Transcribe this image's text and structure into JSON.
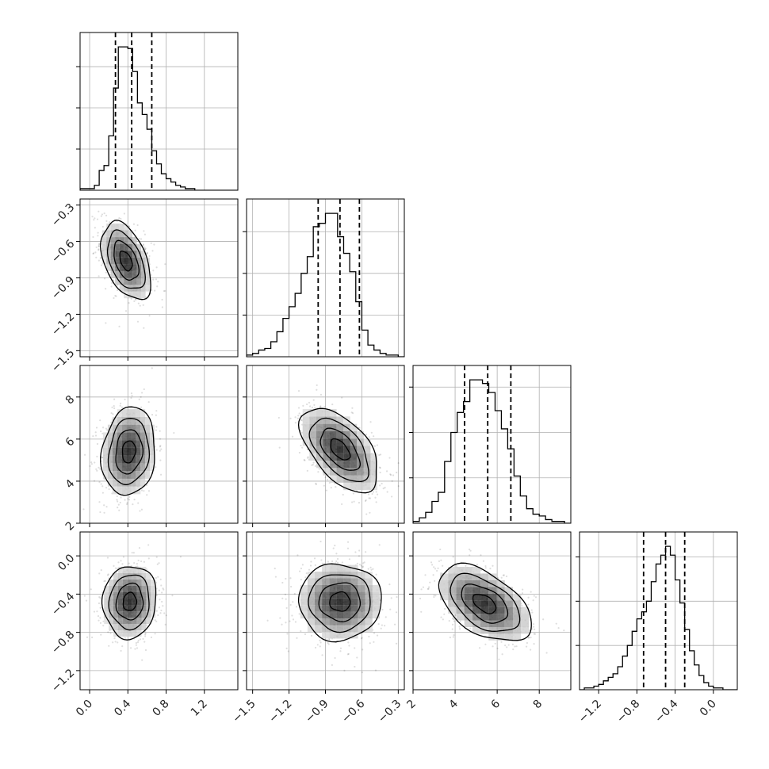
{
  "chart_data": {
    "type": "corner",
    "grid": true,
    "params": [
      {
        "range": [
          -0.1,
          1.55
        ],
        "ticks": [
          0.0,
          0.4,
          0.8,
          1.2
        ],
        "tick_labels": [
          "0.0",
          "0.4",
          "0.8",
          "1.2"
        ],
        "quantiles": [
          0.27,
          0.44,
          0.65
        ],
        "hist": {
          "edges": [
            -0.1,
            -0.05,
            0.0,
            0.05,
            0.1,
            0.15,
            0.2,
            0.25,
            0.3,
            0.35,
            0.4,
            0.45,
            0.5,
            0.55,
            0.6,
            0.65,
            0.7,
            0.75,
            0.8,
            0.85,
            0.9,
            0.95,
            1.0,
            1.05,
            1.1,
            1.15,
            1.2,
            1.25,
            1.3,
            1.35,
            1.4,
            1.45,
            1.5,
            1.55
          ],
          "counts": [
            1,
            1,
            1,
            3,
            12,
            15,
            33,
            62,
            87,
            87,
            86,
            72,
            53,
            46,
            37,
            24,
            16,
            10,
            7,
            5,
            3,
            2,
            1,
            1,
            0,
            0,
            0,
            0,
            0,
            0,
            0,
            0,
            0
          ]
        },
        "hist_yticks": [
          25,
          50,
          75
        ]
      },
      {
        "range": [
          -1.55,
          -0.25
        ],
        "ticks": [
          -1.5,
          -1.2,
          -0.9,
          -0.6,
          -0.3
        ],
        "tick_labels": [
          "−1.5",
          "−1.2",
          "−0.9",
          "−0.6",
          "−0.3"
        ],
        "quantiles": [
          -0.96,
          -0.78,
          -0.62
        ],
        "hist": {
          "edges": [
            -1.55,
            -1.5,
            -1.45,
            -1.4,
            -1.35,
            -1.3,
            -1.25,
            -1.2,
            -1.15,
            -1.1,
            -1.05,
            -1.0,
            -0.95,
            -0.9,
            -0.85,
            -0.8,
            -0.75,
            -0.7,
            -0.65,
            -0.6,
            -0.55,
            -0.5,
            -0.45,
            -0.4,
            -0.35,
            -0.3,
            -0.25
          ],
          "counts": [
            1,
            2,
            4,
            5,
            9,
            15,
            23,
            30,
            38,
            50,
            60,
            78,
            80,
            86,
            86,
            72,
            62,
            51,
            33,
            16,
            7,
            4,
            2,
            1,
            1,
            0
          ]
        },
        "hist_yticks": [
          25,
          50,
          75
        ]
      },
      {
        "range": [
          2.0,
          9.5
        ],
        "ticks": [
          2,
          4,
          6,
          8
        ],
        "tick_labels": [
          "2",
          "4",
          "6",
          "8"
        ],
        "quantiles": [
          4.45,
          5.55,
          6.65
        ],
        "hist": {
          "edges": [
            2.0,
            2.3,
            2.6,
            2.9,
            3.2,
            3.5,
            3.8,
            4.1,
            4.4,
            4.7,
            5.0,
            5.3,
            5.6,
            5.9,
            6.2,
            6.5,
            6.8,
            7.1,
            7.4,
            7.7,
            8.0,
            8.3,
            8.6,
            8.9,
            9.2,
            9.5
          ],
          "counts": [
            1,
            3,
            6,
            12,
            17,
            34,
            50,
            61,
            67,
            79,
            79,
            77,
            72,
            62,
            52,
            41,
            26,
            15,
            8,
            5,
            4,
            2,
            1,
            1,
            0
          ]
        },
        "hist_yticks": [
          25,
          50,
          75
        ]
      },
      {
        "range": [
          -1.4,
          0.25
        ],
        "ticks": [
          -1.2,
          -0.8,
          -0.4,
          0.0
        ],
        "tick_labels": [
          "−1.2",
          "−0.8",
          "−0.4",
          "0.0"
        ],
        "quantiles": [
          -0.73,
          -0.5,
          -0.3
        ],
        "hist": {
          "edges": [
            -1.4,
            -1.35,
            -1.3,
            -1.25,
            -1.2,
            -1.15,
            -1.1,
            -1.05,
            -1.0,
            -0.95,
            -0.9,
            -0.85,
            -0.8,
            -0.75,
            -0.7,
            -0.65,
            -0.6,
            -0.55,
            -0.5,
            -0.45,
            -0.4,
            -0.35,
            -0.3,
            -0.25,
            -0.2,
            -0.15,
            -0.1,
            -0.05,
            0.0,
            0.05,
            0.1,
            0.15,
            0.2,
            0.25
          ],
          "counts": [
            0,
            1,
            1,
            2,
            3,
            5,
            7,
            9,
            13,
            19,
            25,
            33,
            40,
            44,
            50,
            61,
            71,
            76,
            81,
            76,
            62,
            49,
            34,
            22,
            14,
            8,
            4,
            2,
            1,
            1,
            0,
            0,
            0
          ]
        },
        "hist_yticks": [
          25,
          50,
          75
        ]
      }
    ],
    "pairs": [
      {
        "x": 0,
        "y": 1,
        "center": [
          0.38,
          -0.76
        ],
        "sigma": [
          0.13,
          0.16
        ],
        "rho": -0.45
      },
      {
        "x": 0,
        "y": 2,
        "center": [
          0.41,
          5.4
        ],
        "sigma": [
          0.14,
          1.05
        ],
        "rho": 0.12
      },
      {
        "x": 1,
        "y": 2,
        "center": [
          -0.78,
          5.5
        ],
        "sigma": [
          0.16,
          1.0
        ],
        "rho": -0.55
      },
      {
        "x": 0,
        "y": 3,
        "center": [
          0.42,
          -0.48
        ],
        "sigma": [
          0.14,
          0.19
        ],
        "rho": 0.05
      },
      {
        "x": 1,
        "y": 3,
        "center": [
          -0.78,
          -0.48
        ],
        "sigma": [
          0.17,
          0.2
        ],
        "rho": 0.0
      },
      {
        "x": 2,
        "y": 3,
        "center": [
          5.4,
          -0.5
        ],
        "sigma": [
          1.1,
          0.2
        ],
        "rho": -0.5
      }
    ]
  }
}
